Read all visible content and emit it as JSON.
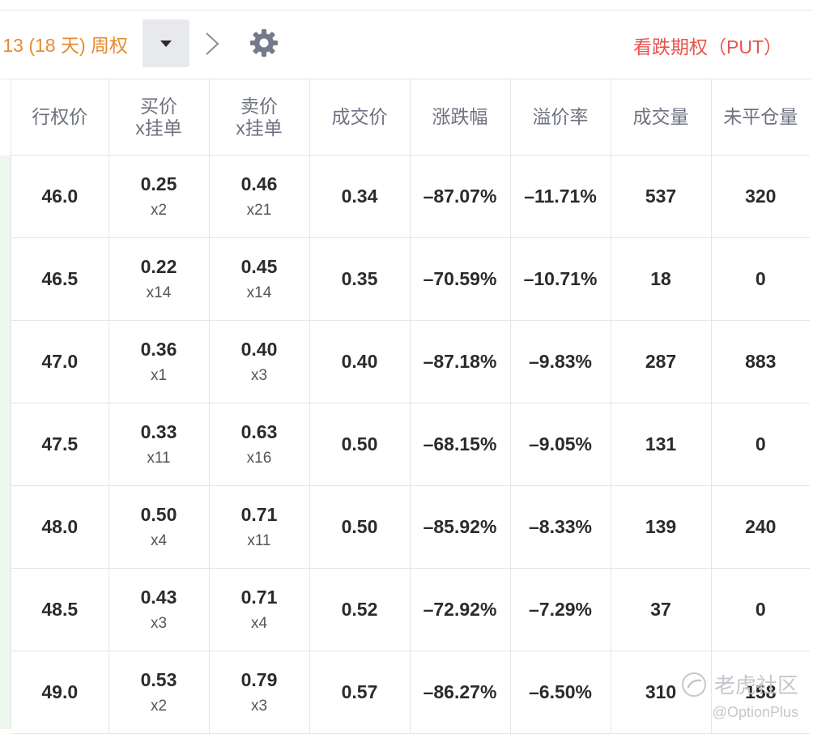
{
  "toolbar": {
    "expiry_label": "13 (18 天) 周权",
    "put_title": "看跌期权（PUT）"
  },
  "table": {
    "headers": [
      {
        "line1": "行权价",
        "line2": ""
      },
      {
        "line1": "买价",
        "line2": "x挂单"
      },
      {
        "line1": "卖价",
        "line2": "x挂单"
      },
      {
        "line1": "成交价",
        "line2": ""
      },
      {
        "line1": "涨跌幅",
        "line2": ""
      },
      {
        "line1": "溢价率",
        "line2": ""
      },
      {
        "line1": "成交量",
        "line2": ""
      },
      {
        "line1": "未平仓量",
        "line2": ""
      }
    ],
    "rows": [
      {
        "strike": "46.0",
        "bid": "0.25",
        "bid_size": "x2",
        "ask": "0.46",
        "ask_size": "x21",
        "last": "0.34",
        "change": "–87.07%",
        "premium": "–11.71%",
        "volume": "537",
        "open_interest": "320"
      },
      {
        "strike": "46.5",
        "bid": "0.22",
        "bid_size": "x14",
        "ask": "0.45",
        "ask_size": "x14",
        "last": "0.35",
        "change": "–70.59%",
        "premium": "–10.71%",
        "volume": "18",
        "open_interest": "0"
      },
      {
        "strike": "47.0",
        "bid": "0.36",
        "bid_size": "x1",
        "ask": "0.40",
        "ask_size": "x3",
        "last": "0.40",
        "change": "–87.18%",
        "premium": "–9.83%",
        "volume": "287",
        "open_interest": "883"
      },
      {
        "strike": "47.5",
        "bid": "0.33",
        "bid_size": "x11",
        "ask": "0.63",
        "ask_size": "x16",
        "last": "0.50",
        "change": "–68.15%",
        "premium": "–9.05%",
        "volume": "131",
        "open_interest": "0"
      },
      {
        "strike": "48.0",
        "bid": "0.50",
        "bid_size": "x4",
        "ask": "0.71",
        "ask_size": "x11",
        "last": "0.50",
        "change": "–85.92%",
        "premium": "–8.33%",
        "volume": "139",
        "open_interest": "240"
      },
      {
        "strike": "48.5",
        "bid": "0.43",
        "bid_size": "x3",
        "ask": "0.71",
        "ask_size": "x4",
        "last": "0.52",
        "change": "–72.92%",
        "premium": "–7.29%",
        "volume": "37",
        "open_interest": "0"
      },
      {
        "strike": "49.0",
        "bid": "0.53",
        "bid_size": "x2",
        "ask": "0.79",
        "ask_size": "x3",
        "last": "0.57",
        "change": "–86.27%",
        "premium": "–6.50%",
        "volume": "310",
        "open_interest": "158"
      }
    ]
  },
  "watermark": {
    "main": "老虎社区",
    "sub": "@OptionPlus"
  },
  "icons": {
    "dropdown": "caret-down-icon",
    "next": "chevron-right-icon",
    "settings": "gear-icon",
    "watermark_logo": "tiger-logo-icon"
  },
  "colors": {
    "accent_orange": "#e88a2d",
    "put_red": "#e8534b",
    "negative_change": "#e8534b",
    "header_text": "#6e7180",
    "grid": "#e5e5e8",
    "dropdown_bg": "#e8e9ec"
  }
}
